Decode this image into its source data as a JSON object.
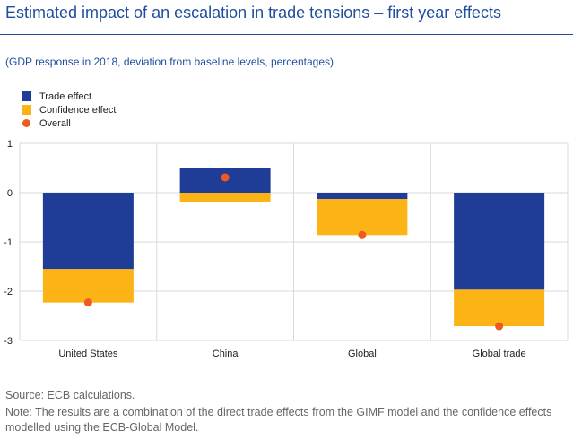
{
  "header": {
    "title": "Estimated impact of an escalation in trade tensions – first year effects",
    "subtitle": "(GDP response in 2018, deviation from baseline levels, percentages)"
  },
  "footer": {
    "source": "Source: ECB calculations.",
    "note": "Note: The results are a combination of the direct trade effects from the GIMF model and the confidence effects modelled using the ECB-Global Model."
  },
  "colors": {
    "trade": "#1f3c97",
    "confidence": "#fcb316",
    "overall": "#f05a22",
    "grid": "#d9d9d9",
    "text": "#222222"
  },
  "chart_data": {
    "type": "bar",
    "stacked": true,
    "categories": [
      "United States",
      "China",
      "Global",
      "Global trade"
    ],
    "series": [
      {
        "name": "Trade effect",
        "key": "trade",
        "values": [
          -1.55,
          0.5,
          -0.13,
          -1.97
        ]
      },
      {
        "name": "Confidence effect",
        "key": "confidence",
        "values": [
          -0.68,
          -0.19,
          -0.73,
          -0.74
        ]
      }
    ],
    "overall": {
      "name": "Overall",
      "values": [
        -2.23,
        0.31,
        -0.86,
        -2.71
      ]
    },
    "ylim": [
      -3,
      1
    ],
    "yticks": [
      1,
      0,
      -1,
      -2,
      -3
    ],
    "ytick_labels": [
      "1",
      "0",
      "-1",
      "-2",
      "-3"
    ],
    "legend_position": "top-left"
  }
}
